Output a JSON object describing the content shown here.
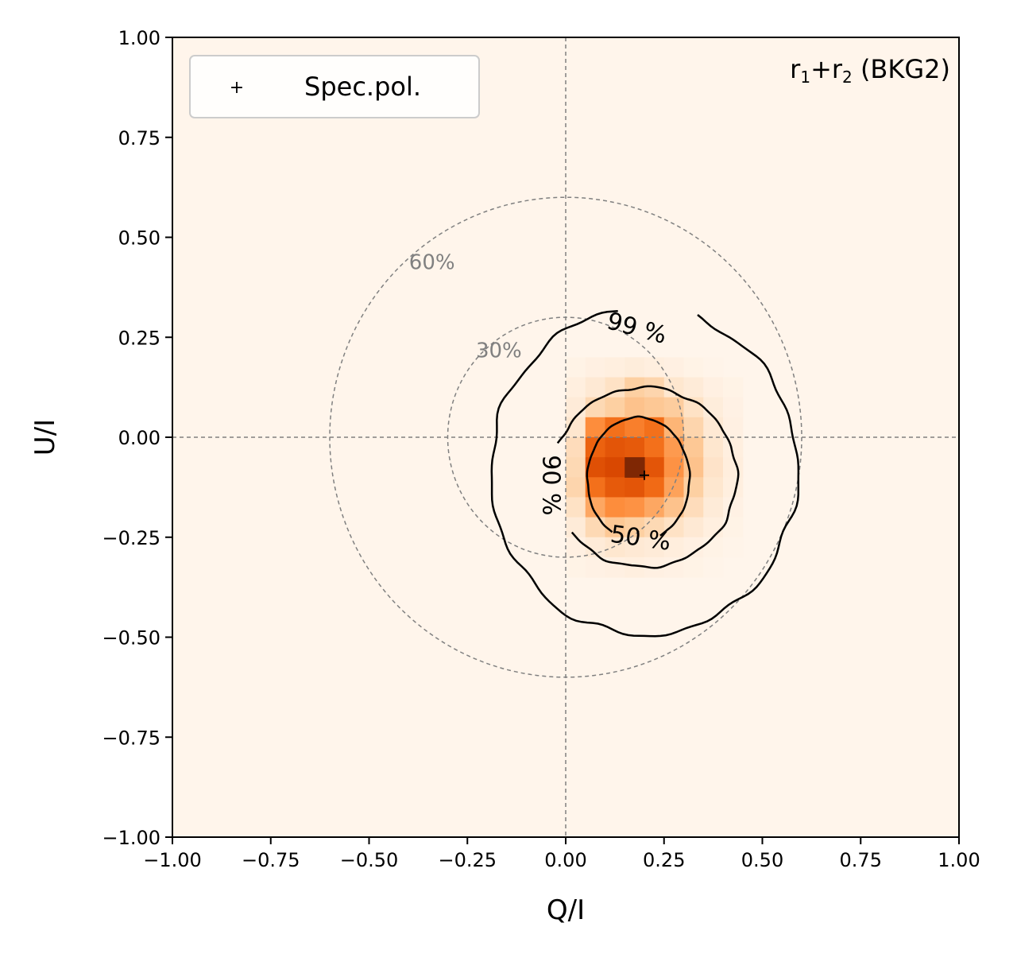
{
  "chart_data": {
    "type": "heatmap",
    "title": "",
    "annotation": {
      "base": "r",
      "sub1": "1",
      "plus": "+",
      "sub2": "2",
      "suffix": " (BKG2)"
    },
    "xlabel": "Q/I",
    "ylabel": "U/I",
    "xlim": [
      -1.0,
      1.0
    ],
    "ylim": [
      -1.0,
      1.0
    ],
    "xticks": [
      -1.0,
      -0.75,
      -0.5,
      -0.25,
      0.0,
      0.25,
      0.5,
      0.75,
      1.0
    ],
    "yticks": [
      -1.0,
      -0.75,
      -0.5,
      -0.25,
      0.0,
      0.25,
      0.5,
      0.75,
      1.0
    ],
    "xtick_labels": [
      "−1.00",
      "−0.75",
      "−0.50",
      "−0.25",
      "0.00",
      "0.25",
      "0.50",
      "0.75",
      "1.00"
    ],
    "ytick_labels": [
      "−1.00",
      "−0.75",
      "−0.50",
      "−0.25",
      "0.00",
      "0.25",
      "0.50",
      "0.75",
      "1.00"
    ],
    "colormap": "Oranges",
    "colors": {
      "background": "#fff5eb",
      "peak": "#7f2704",
      "reference": "#808080",
      "contour": "#000000"
    },
    "legend": {
      "location": "upper-left",
      "entries": [
        {
          "marker": "+",
          "label": "Spec.pol."
        }
      ]
    },
    "spec_pol": {
      "q": 0.2,
      "u": -0.095
    },
    "density": {
      "bin_size": 0.05,
      "x_centers": [
        0.025,
        0.075,
        0.125,
        0.175,
        0.225,
        0.275,
        0.325,
        0.375,
        0.425
      ],
      "y_centers": [
        0.175,
        0.125,
        0.075,
        0.025,
        -0.025,
        -0.075,
        -0.125,
        -0.175,
        -0.225,
        -0.275,
        -0.325
      ],
      "values": [
        [
          0.02,
          0.04,
          0.05,
          0.07,
          0.05,
          0.04,
          0.02,
          0.01,
          0.0
        ],
        [
          0.05,
          0.1,
          0.15,
          0.25,
          0.22,
          0.12,
          0.08,
          0.04,
          0.02
        ],
        [
          0.08,
          0.2,
          0.25,
          0.3,
          0.28,
          0.26,
          0.15,
          0.07,
          0.03
        ],
        [
          0.12,
          0.5,
          0.6,
          0.55,
          0.6,
          0.35,
          0.22,
          0.1,
          0.04
        ],
        [
          0.18,
          0.65,
          0.7,
          0.68,
          0.6,
          0.45,
          0.28,
          0.12,
          0.05
        ],
        [
          0.2,
          0.72,
          0.75,
          0.8,
          0.7,
          0.48,
          0.3,
          0.14,
          0.06
        ],
        [
          0.22,
          0.6,
          0.68,
          0.7,
          0.62,
          0.42,
          0.25,
          0.12,
          0.05
        ],
        [
          0.15,
          0.4,
          0.5,
          0.48,
          0.4,
          0.3,
          0.18,
          0.08,
          0.03
        ],
        [
          0.08,
          0.2,
          0.28,
          0.25,
          0.2,
          0.15,
          0.1,
          0.05,
          0.02
        ],
        [
          0.04,
          0.08,
          0.12,
          0.1,
          0.08,
          0.06,
          0.04,
          0.02,
          0.01
        ],
        [
          0.02,
          0.03,
          0.04,
          0.05,
          0.04,
          0.03,
          0.02,
          0.01,
          0.0
        ]
      ],
      "peak_bin": {
        "q": 0.175,
        "u": -0.075
      }
    },
    "reference_circles": [
      {
        "radius": 0.3,
        "label": "30%",
        "label_at": {
          "q": -0.17,
          "u": 0.22
        }
      },
      {
        "radius": 0.6,
        "label": "60%",
        "label_at": {
          "q": -0.34,
          "u": 0.44
        }
      }
    ],
    "confidence_contours": [
      {
        "level": "50 %",
        "center": {
          "q": 0.185,
          "u": -0.105
        },
        "radius_q": 0.13,
        "radius_u": 0.155,
        "wobble": 0.006,
        "gap_from_deg": 240,
        "gap_to_deg": 295,
        "label_at": {
          "q": 0.19,
          "u": -0.255
        },
        "label_rotation": 8
      },
      {
        "level": "90 %",
        "center": {
          "q": 0.2,
          "u": -0.1
        },
        "radius_q": 0.235,
        "radius_u": 0.225,
        "wobble": 0.01,
        "gap_from_deg": 158,
        "gap_to_deg": 218,
        "label_at": {
          "q": -0.04,
          "u": -0.12
        },
        "label_rotation": 90
      },
      {
        "level": "99 %",
        "center": {
          "q": 0.2,
          "u": -0.085
        },
        "radius_q": 0.39,
        "radius_u": 0.41,
        "wobble": 0.012,
        "gap_from_deg": 70,
        "gap_to_deg": 100,
        "label_at": {
          "q": 0.18,
          "u": 0.27
        },
        "label_rotation": 15
      }
    ]
  }
}
